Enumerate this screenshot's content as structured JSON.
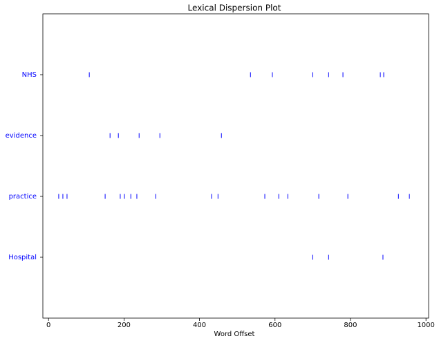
{
  "chart_data": {
    "type": "dispersion",
    "title": "Lexical Dispersion Plot",
    "x_label": "Word Offset",
    "categories": [
      "NHS",
      "evidence",
      "practice",
      "Hospital"
    ],
    "offsets": [
      [
        108,
        535,
        593,
        700,
        742,
        780,
        879,
        888
      ],
      [
        163,
        185,
        240,
        295,
        458
      ],
      [
        27,
        38,
        49,
        150,
        190,
        201,
        218,
        234,
        284,
        432,
        449,
        573,
        610,
        634,
        716,
        793,
        927,
        956
      ],
      [
        700,
        742,
        886
      ]
    ],
    "color": "#0000ff",
    "xlim": [
      -15,
      1007
    ],
    "xticks": [
      0,
      200,
      400,
      600,
      800,
      1000
    ]
  }
}
